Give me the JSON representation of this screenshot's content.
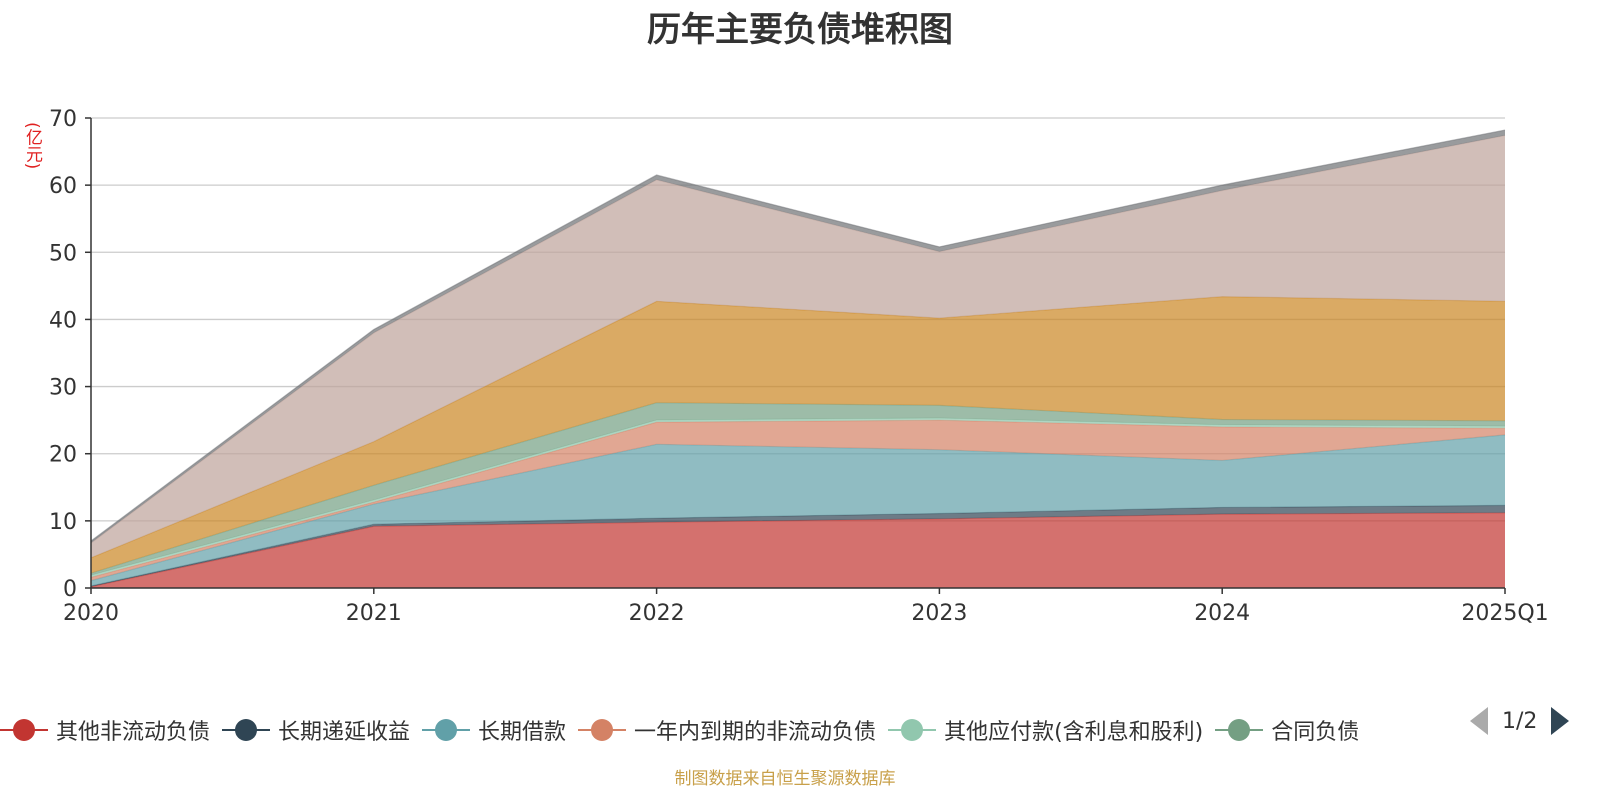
{
  "chart_data": {
    "type": "area",
    "stacked": true,
    "title": "历年主要负债堆积图",
    "ylabel": "(亿元)",
    "categories": [
      "2020",
      "2021",
      "2022",
      "2023",
      "2024",
      "2025Q1"
    ],
    "ylim": [
      0,
      70
    ],
    "yticks": [
      0,
      10,
      20,
      30,
      40,
      50,
      60,
      70
    ],
    "grid": true,
    "series": [
      {
        "name": "其他非流动负债",
        "color": "#c23531",
        "values": [
          0.2,
          9.2,
          9.8,
          10.3,
          11.0,
          11.2
        ]
      },
      {
        "name": "长期递延收益",
        "color": "#2f4554",
        "values": [
          0.1,
          0.3,
          0.6,
          0.8,
          1.0,
          1.1
        ]
      },
      {
        "name": "长期借款",
        "color": "#61a0a8",
        "values": [
          0.8,
          3.0,
          11.0,
          9.5,
          7.0,
          10.5
        ]
      },
      {
        "name": "一年内到期的非流动负债",
        "color": "#d48265",
        "values": [
          0.5,
          0.3,
          3.3,
          4.4,
          5.0,
          1.0
        ]
      },
      {
        "name": "其他应付款(含利息和股利)",
        "color": "#91c7ae",
        "values": [
          0.3,
          0.3,
          0.3,
          0.3,
          0.3,
          0.3
        ]
      },
      {
        "name": "合同负债",
        "color": "#749f83",
        "values": [
          0.3,
          2.2,
          2.6,
          1.9,
          0.8,
          0.8
        ]
      },
      {
        "name": "",
        "color": "#ca8622",
        "values": [
          2.3,
          6.5,
          15.1,
          13.0,
          18.3,
          17.8
        ]
      },
      {
        "name": "",
        "color": "#bda29a",
        "values": [
          2.2,
          16.2,
          18.1,
          9.9,
          15.8,
          24.7
        ]
      },
      {
        "name": "",
        "color": "#6e7074",
        "values": [
          0.3,
          0.5,
          0.7,
          0.7,
          0.8,
          0.8
        ]
      }
    ],
    "legend_position": "bottom"
  },
  "legend": {
    "items": [
      {
        "label": "其他非流动负债",
        "color": "#c23531"
      },
      {
        "label": "长期递延收益",
        "color": "#2f4554"
      },
      {
        "label": "长期借款",
        "color": "#61a0a8"
      },
      {
        "label": "一年内到期的非流动负债",
        "color": "#d48265"
      },
      {
        "label": "其他应付款(含利息和股利)",
        "color": "#91c7ae"
      },
      {
        "label": "合同负债",
        "color": "#749f83"
      }
    ],
    "page_indicator": "1/2"
  },
  "footer": {
    "source": "制图数据来自恒生聚源数据库"
  }
}
